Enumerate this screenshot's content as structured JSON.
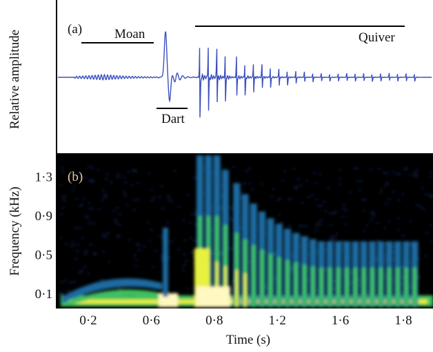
{
  "panel_a": {
    "label": "(a)",
    "y_label": "Relative amplitude",
    "annotations": [
      "Moan",
      "Dart",
      "Quiver"
    ]
  },
  "panel_b": {
    "label": "(b)",
    "y_label": "Frequency (kHz)",
    "ytick_labels": [
      "0·1",
      "0·5",
      "0·9",
      "1·3"
    ]
  },
  "x_axis": {
    "label": "Time (s)",
    "tick_labels": [
      "0·2",
      "0·6",
      "0·8",
      "1·2",
      "1·6",
      "1·8"
    ]
  }
}
